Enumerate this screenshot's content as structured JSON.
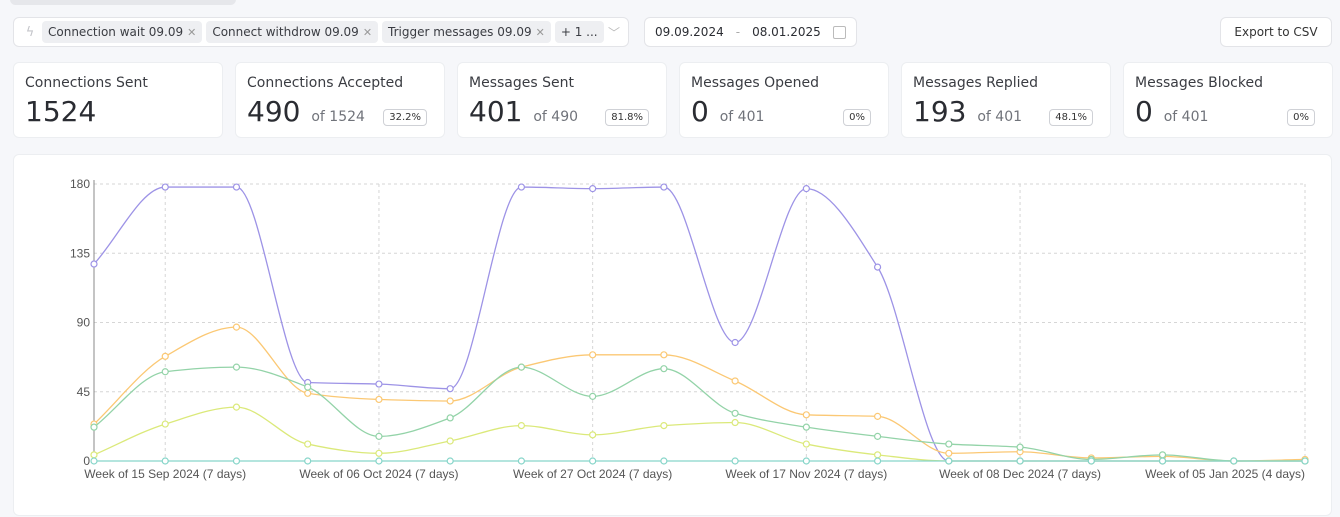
{
  "filters": {
    "chips": [
      "Connection wait 09.09",
      "Connect withdrow 09.09",
      "Trigger messages 09.09"
    ],
    "more": "+ 1 ..."
  },
  "date_range": {
    "from": "09.09.2024",
    "separator": "-",
    "to": "08.01.2025"
  },
  "export_label": "Export to CSV",
  "cards": [
    {
      "title": "Connections Sent",
      "value": "1524",
      "of": "",
      "pct": ""
    },
    {
      "title": "Connections Accepted",
      "value": "490",
      "of": "of 1524",
      "pct": "32.2%"
    },
    {
      "title": "Messages Sent",
      "value": "401",
      "of": "of 490",
      "pct": "81.8%"
    },
    {
      "title": "Messages Opened",
      "value": "0",
      "of": "of 401",
      "pct": "0%"
    },
    {
      "title": "Messages Replied",
      "value": "193",
      "of": "of 401",
      "pct": "48.1%"
    },
    {
      "title": "Messages Blocked",
      "value": "0",
      "of": "of 401",
      "pct": "0%"
    }
  ],
  "chart_data": {
    "type": "line",
    "ylim": [
      0,
      180
    ],
    "yticks": [
      "0",
      "45",
      "90",
      "135",
      "180"
    ],
    "x_labels": [
      "Week of 15 Sep 2024 (7 days)",
      "Week of 06 Oct 2024 (7 days)",
      "Week of 27 Oct 2024 (7 days)",
      "Week of 17 Nov 2024 (7 days)",
      "Week of 08 Dec 2024 (7 days)",
      "Week of 05 Jan 2025 (4 days)"
    ],
    "x_label_indices": [
      1,
      4,
      7,
      10,
      13,
      17
    ],
    "points": 18,
    "series": [
      {
        "name": "purple",
        "color": "#9d93e6",
        "values": [
          128,
          178,
          178,
          51,
          50,
          47,
          178,
          177,
          178,
          77,
          177,
          126,
          0,
          0,
          0,
          0,
          0,
          0
        ]
      },
      {
        "name": "orange",
        "color": "#fbc874",
        "values": [
          24,
          68,
          87,
          44,
          40,
          39,
          61,
          69,
          69,
          52,
          30,
          29,
          5,
          6,
          2,
          3,
          0,
          1
        ]
      },
      {
        "name": "green",
        "color": "#93d3a8",
        "values": [
          22,
          58,
          61,
          48,
          16,
          28,
          61,
          42,
          60,
          31,
          22,
          16,
          11,
          9,
          1,
          4,
          0,
          0
        ]
      },
      {
        "name": "lime",
        "color": "#dbe97a",
        "values": [
          4,
          24,
          35,
          11,
          5,
          13,
          23,
          17,
          23,
          25,
          11,
          4,
          0,
          0,
          0,
          0,
          0,
          0
        ]
      },
      {
        "name": "teal",
        "color": "#86d5c9",
        "values": [
          0,
          0,
          0,
          0,
          0,
          0,
          0,
          0,
          0,
          0,
          0,
          0,
          0,
          0,
          0,
          0,
          0,
          0
        ]
      }
    ]
  }
}
